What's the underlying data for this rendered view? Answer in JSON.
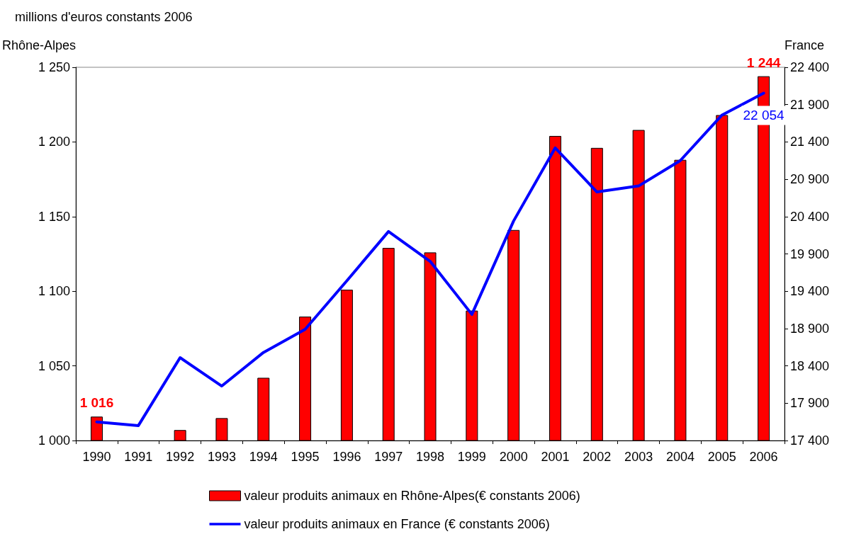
{
  "chart_data": {
    "type": "bar",
    "title": "millions d'euros constants 2006",
    "ylabel": "Rhône-Alpes",
    "y2label": "France",
    "categories": [
      "1990",
      "1991",
      "1992",
      "1993",
      "1994",
      "1995",
      "1996",
      "1997",
      "1998",
      "1999",
      "2000",
      "2001",
      "2002",
      "2003",
      "2004",
      "2005",
      "2006"
    ],
    "series": [
      {
        "name": "valeur produits animaux en Rhône-Alpes(€ constants 2006)",
        "color": "#ff0000",
        "values": [
          1016,
          null,
          1007,
          1015,
          1042,
          1083,
          1101,
          1129,
          1126,
          1087,
          1141,
          1204,
          1196,
          1208,
          1188,
          1218,
          1244
        ],
        "value_labels": [
          "1 016",
          null,
          null,
          null,
          null,
          null,
          null,
          null,
          null,
          null,
          null,
          null,
          null,
          null,
          null,
          null,
          "1 244"
        ]
      },
      {
        "name": "valeur produits animaux en France (€ constants 2006)",
        "type": "line",
        "axis": "y2",
        "color": "#0000ff",
        "values": [
          17650,
          17600,
          18510,
          18130,
          18580,
          18890,
          19540,
          20200,
          19800,
          19090,
          20340,
          21320,
          20730,
          20810,
          21150,
          21760,
          22054
        ],
        "value_labels": [
          null,
          null,
          null,
          null,
          null,
          null,
          null,
          null,
          null,
          null,
          null,
          null,
          null,
          null,
          null,
          null,
          "22 054"
        ]
      }
    ],
    "ylim": [
      1000,
      1250
    ],
    "yticks": [
      {
        "value": 1000,
        "label": "1 000"
      },
      {
        "value": 1050,
        "label": "1 050"
      },
      {
        "value": 1100,
        "label": "1 100"
      },
      {
        "value": 1150,
        "label": "1 150"
      },
      {
        "value": 1200,
        "label": "1 200"
      },
      {
        "value": 1250,
        "label": "1 250"
      }
    ],
    "y2lim": [
      17400,
      22400
    ],
    "y2ticks": [
      {
        "value": 17400,
        "label": "17 400"
      },
      {
        "value": 17900,
        "label": "17 900"
      },
      {
        "value": 18400,
        "label": "18 400"
      },
      {
        "value": 18900,
        "label": "18 900"
      },
      {
        "value": 19400,
        "label": "19 400"
      },
      {
        "value": 19900,
        "label": "19 900"
      },
      {
        "value": 20400,
        "label": "20 400"
      },
      {
        "value": 20900,
        "label": "20 900"
      },
      {
        "value": 21400,
        "label": "21 400"
      },
      {
        "value": 21900,
        "label": "21 900"
      },
      {
        "value": 22400,
        "label": "22 400"
      }
    ],
    "grid": false,
    "legend": "bottom",
    "marker": "none",
    "line_style": "solid"
  }
}
